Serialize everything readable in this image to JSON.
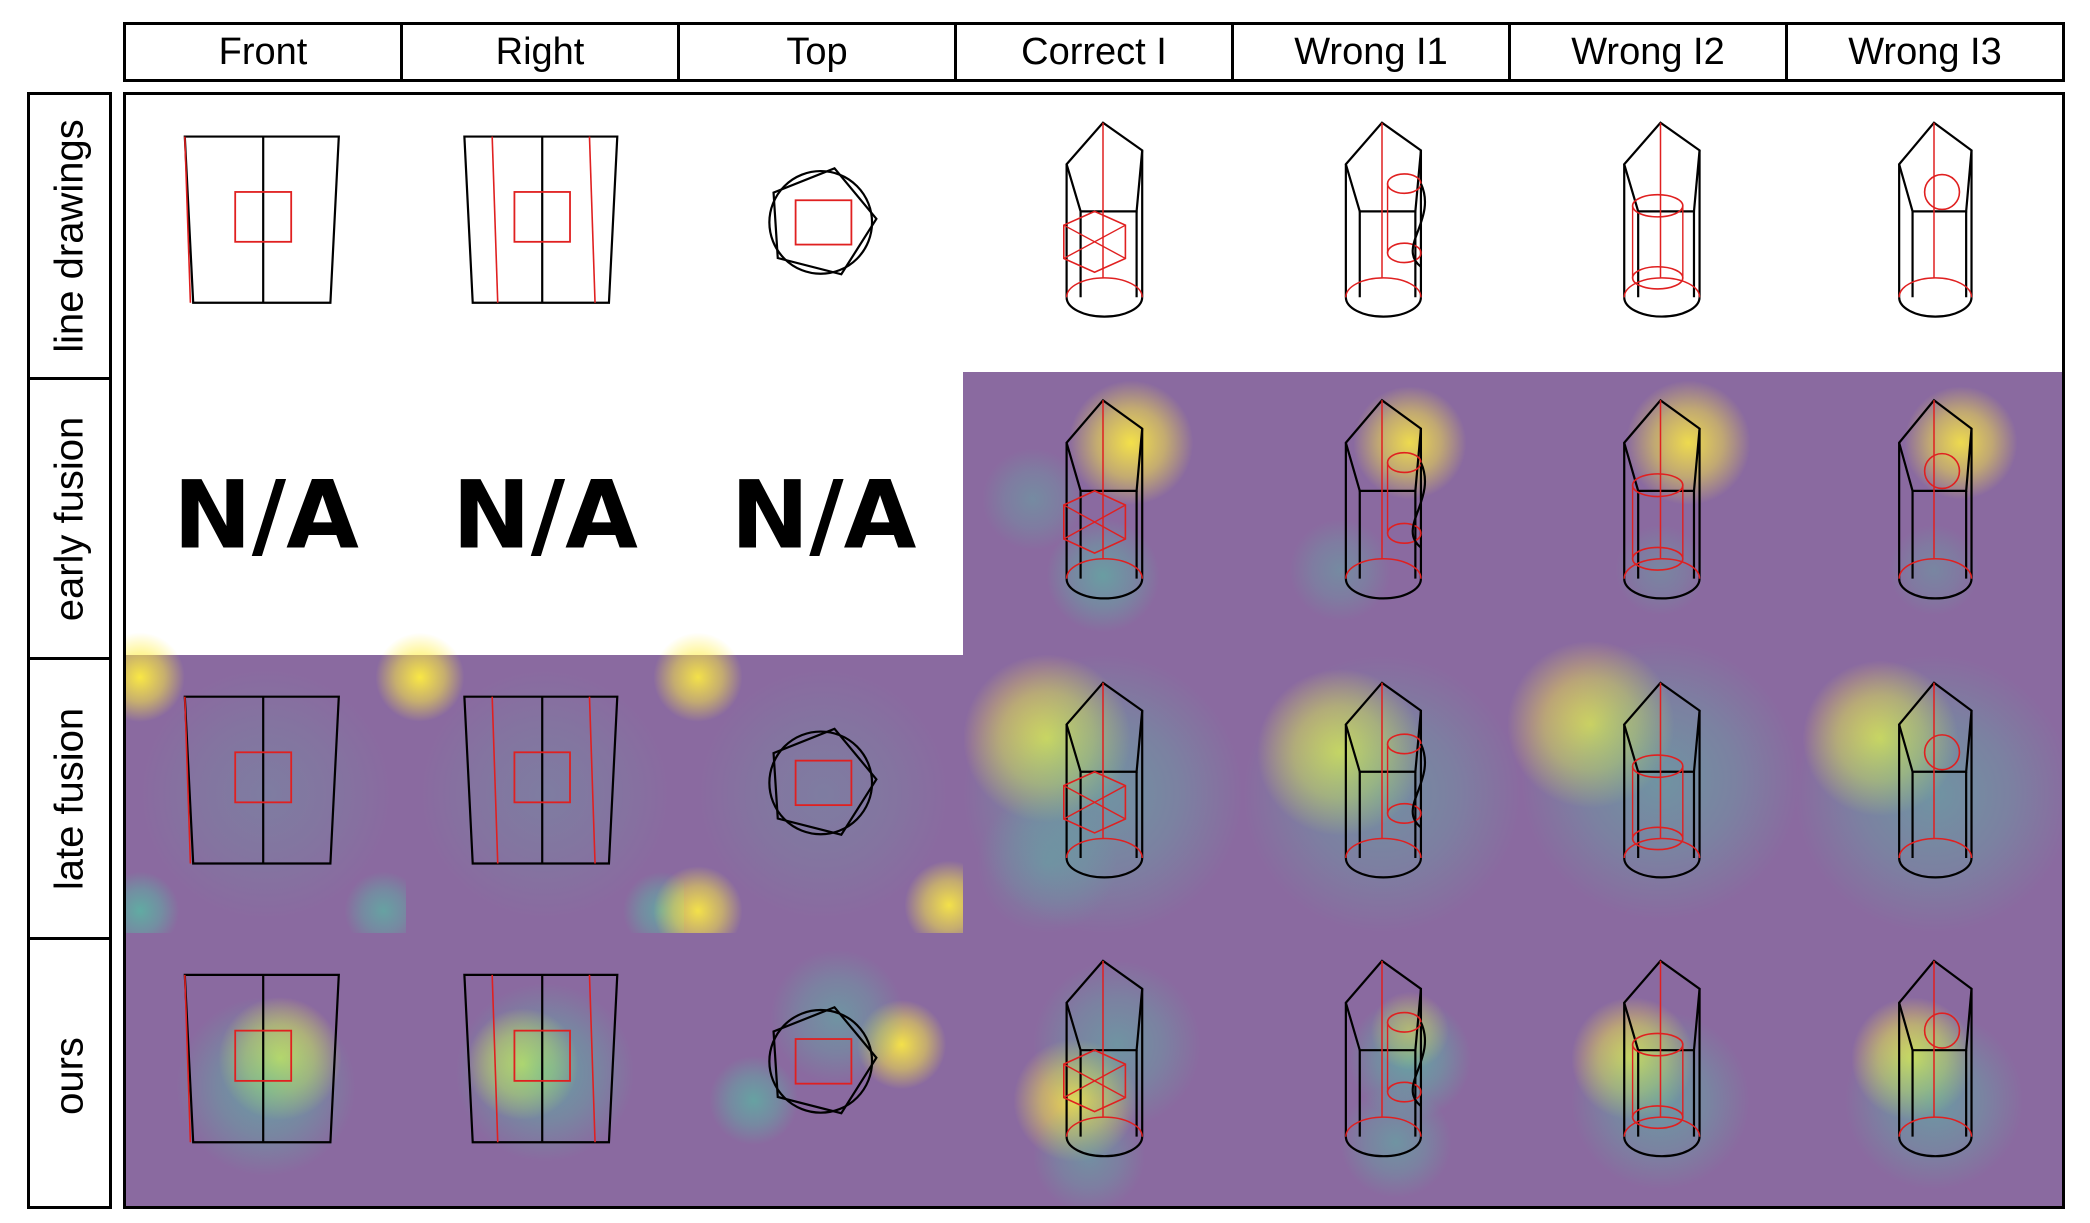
{
  "columns": [
    "Front",
    "Right",
    "Top",
    "Correct I",
    "Wrong I1",
    "Wrong I2",
    "Wrong I3"
  ],
  "rows": [
    "line drawings",
    "early fusion",
    "late fusion",
    "ours"
  ],
  "na_label": "N/A",
  "colors": {
    "outline": "#000000",
    "hidden_line": "#e02020",
    "heatmap_low": "#8a6aa0",
    "heatmap_mid": "#4fc7a4",
    "heatmap_high": "#ffee40"
  }
}
